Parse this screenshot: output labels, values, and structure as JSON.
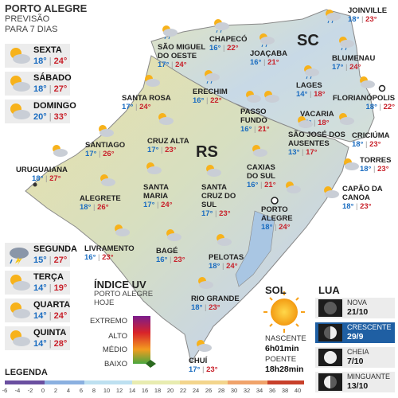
{
  "header": {
    "title": "PORTO ALEGRE",
    "subtitle1": "PREVISÃO",
    "subtitle2": "PARA 7 DIAS"
  },
  "forecast": [
    {
      "day": "SEXTA",
      "min": "18°",
      "max": "24°",
      "icon": "sun-cloud-icon"
    },
    {
      "day": "SÁBADO",
      "min": "18°",
      "max": "27°",
      "icon": "sun-cloud-icon"
    },
    {
      "day": "DOMINGO",
      "min": "20°",
      "max": "33°",
      "icon": "sun-cloud-icon"
    },
    {
      "day": "SEGUNDA",
      "min": "15°",
      "max": "27°",
      "icon": "storm-icon"
    },
    {
      "day": "TERÇA",
      "min": "14°",
      "max": "19°",
      "icon": "sun-cloud-icon"
    },
    {
      "day": "QUARTA",
      "min": "14°",
      "max": "24°",
      "icon": "sun-cloud-icon"
    },
    {
      "day": "QUINTA",
      "min": "14°",
      "max": "28°",
      "icon": "sun-cloud-icon"
    }
  ],
  "map": {
    "state_rs": "RS",
    "state_sc": "SC"
  },
  "cities": [
    {
      "name": "JOINVILLE",
      "min": "18°",
      "max": "23°"
    },
    {
      "name": "SÃO MIGUEL DO OESTE",
      "min": "17°",
      "max": "24°"
    },
    {
      "name": "CHAPECÓ",
      "min": "16°",
      "max": "22°"
    },
    {
      "name": "JOAÇABA",
      "min": "16°",
      "max": "21°"
    },
    {
      "name": "BLUMENAU",
      "min": "17°",
      "max": "24°"
    },
    {
      "name": "LAGES",
      "min": "14°",
      "max": "18°"
    },
    {
      "name": "FLORIANÓPOLIS",
      "min": "18°",
      "max": "22°"
    },
    {
      "name": "ERECHIM",
      "min": "16°",
      "max": "22°"
    },
    {
      "name": "SANTA ROSA",
      "min": "17°",
      "max": "24°"
    },
    {
      "name": "PASSO FUNDO",
      "min": "16°",
      "max": "21°"
    },
    {
      "name": "VACARIA",
      "min": "14°",
      "max": "18°"
    },
    {
      "name": "CRICIÚMA",
      "min": "18°",
      "max": "23°"
    },
    {
      "name": "SÃO JOSÉ DOS AUSENTES",
      "min": "13°",
      "max": "17°"
    },
    {
      "name": "SANTIAGO",
      "min": "17°",
      "max": "26°"
    },
    {
      "name": "CRUZ ALTA",
      "min": "17°",
      "max": "23°"
    },
    {
      "name": "URUGUAIANA",
      "min": "18°",
      "max": "27°"
    },
    {
      "name": "TORRES",
      "min": "18°",
      "max": "23°"
    },
    {
      "name": "CAXIAS DO SUL",
      "min": "16°",
      "max": "21°"
    },
    {
      "name": "ALEGRETE",
      "min": "18°",
      "max": "26°"
    },
    {
      "name": "SANTA MARIA",
      "min": "17°",
      "max": "24°"
    },
    {
      "name": "SANTA CRUZ DO SUL",
      "min": "17°",
      "max": "23°"
    },
    {
      "name": "CAPÃO DA CANOA",
      "min": "18°",
      "max": "23°"
    },
    {
      "name": "PORTO ALEGRE",
      "min": "18°",
      "max": "24°"
    },
    {
      "name": "LIVRAMENTO",
      "min": "16°",
      "max": "23°"
    },
    {
      "name": "BAGÉ",
      "min": "16°",
      "max": "23°"
    },
    {
      "name": "PELOTAS",
      "min": "18°",
      "max": "24°"
    },
    {
      "name": "RIO GRANDE",
      "min": "18°",
      "max": "23°"
    },
    {
      "name": "CHUÍ",
      "min": "17°",
      "max": "23°"
    }
  ],
  "uv": {
    "title": "ÍNDICE UV",
    "subtitle1": "PORTO ALEGRE",
    "subtitle2": "HOJE",
    "levels": [
      "EXTREMO",
      "ALTO",
      "MÉDIO",
      "BAIXO"
    ],
    "current": "BAIXO"
  },
  "sun": {
    "title": "SOL",
    "rise_label": "NASCENTE",
    "rise": "6h01min",
    "set_label": "POENTE",
    "set": "18h28min"
  },
  "moon": {
    "title": "LUA",
    "phases": [
      {
        "phase": "NOVA",
        "date": "21/10"
      },
      {
        "phase": "CRESCENTE",
        "date": "29/9"
      },
      {
        "phase": "CHEIA",
        "date": "7/10"
      },
      {
        "phase": "MINGUANTE",
        "date": "13/10"
      }
    ]
  },
  "legend": {
    "title": "LEGENDA",
    "ticks": [
      "-6",
      "-4",
      "-2",
      "0",
      "2",
      "4",
      "6",
      "8",
      "10",
      "12",
      "14",
      "16",
      "18",
      "20",
      "22",
      "24",
      "26",
      "28",
      "30",
      "32",
      "34",
      "36",
      "38",
      "40"
    ]
  },
  "colors": {
    "min": "#1a6cc0",
    "max": "#c8202a",
    "panel": "#ececec",
    "moon_active": "#1f5fa3"
  }
}
